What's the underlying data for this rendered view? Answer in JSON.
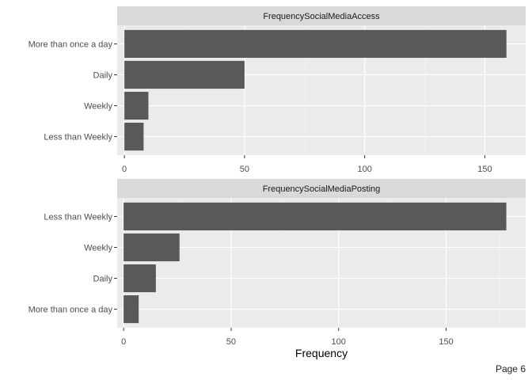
{
  "chart_data": [
    {
      "type": "bar",
      "orientation": "horizontal",
      "title": "FrequencySocialMediaAccess",
      "categories": [
        "More than once a day",
        "Daily",
        "Weekly",
        "Less than Weekly"
      ],
      "values": [
        159,
        50,
        10,
        8
      ],
      "xlim": [
        -3,
        167
      ],
      "x_ticks": [
        0,
        50,
        100,
        150
      ],
      "xlabel": "",
      "grid": true
    },
    {
      "type": "bar",
      "orientation": "horizontal",
      "title": "FrequencySocialMediaPosting",
      "categories": [
        "Less than Weekly",
        "Weekly",
        "Daily",
        "More than once a day"
      ],
      "values": [
        178,
        26,
        15,
        7
      ],
      "xlim": [
        -3,
        187
      ],
      "x_ticks": [
        0,
        50,
        100,
        150
      ],
      "xlabel": "Frequency",
      "grid": true
    }
  ],
  "colors": {
    "panel_background": "#ebebeb",
    "strip_background": "#d9d9d9",
    "grid_major": "#ffffff",
    "grid_minor": "#f2f2f2",
    "bar_fill": "#595959"
  },
  "footer": {
    "page_label": "Page 6"
  }
}
